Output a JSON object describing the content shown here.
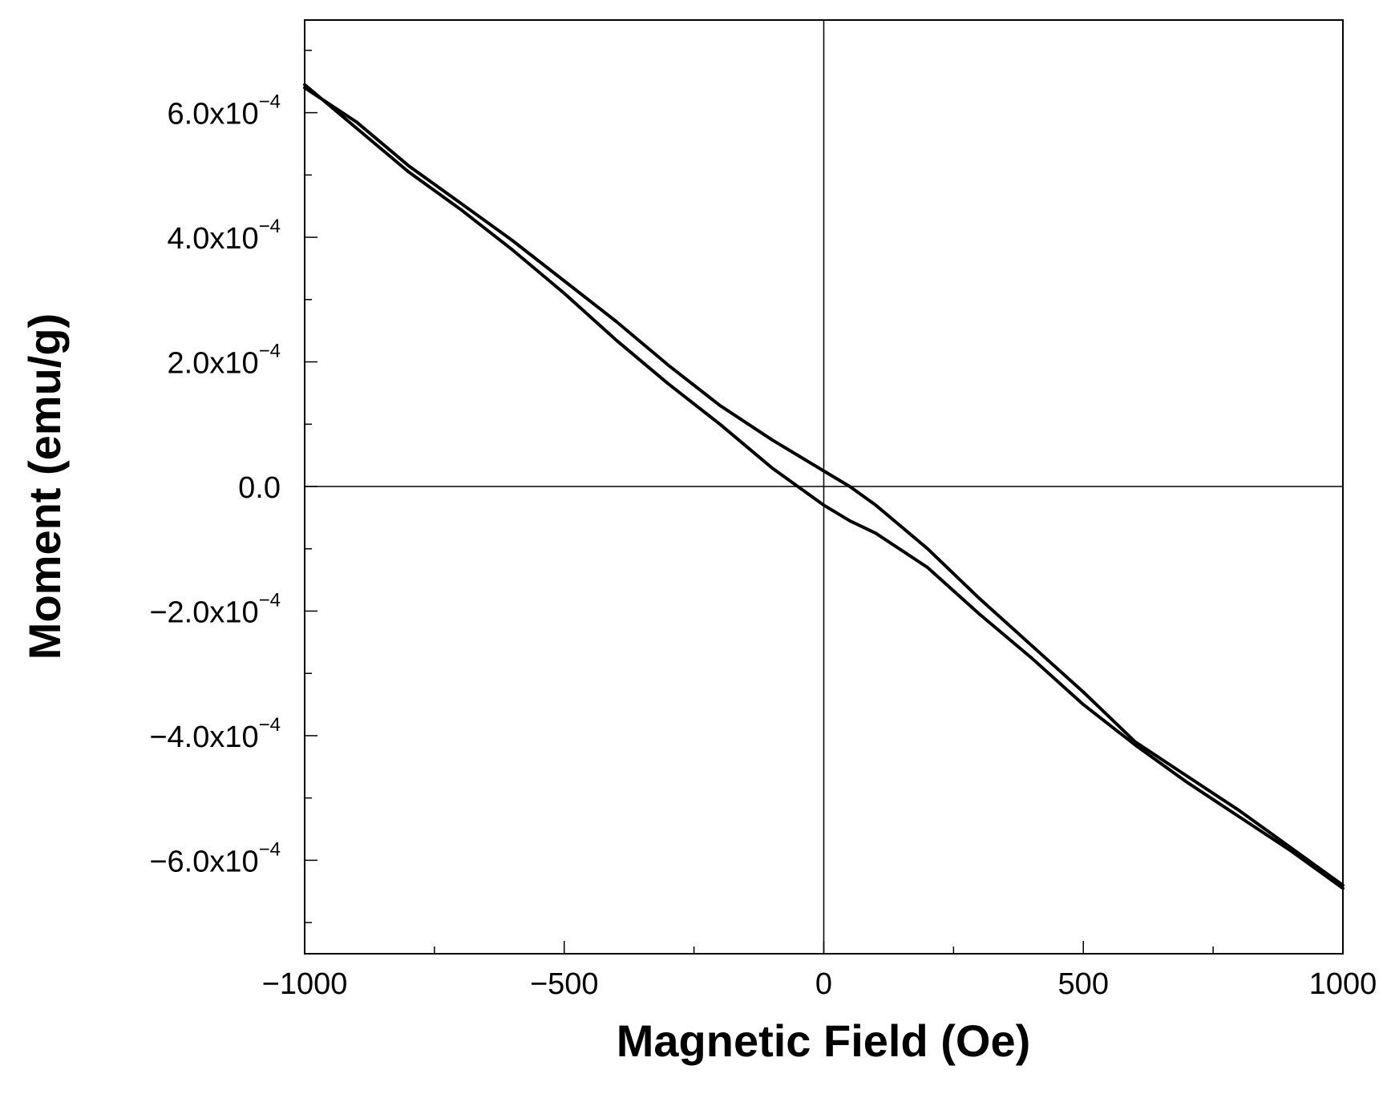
{
  "chart_data": {
    "type": "line",
    "title": "",
    "xlabel": "Magnetic Field (Oe)",
    "ylabel": "Moment (emu/g)",
    "xlim": [
      -1000,
      1000
    ],
    "ylim": [
      -0.00075,
      0.00075
    ],
    "x_ticks": [
      -1000,
      -500,
      0,
      500,
      1000
    ],
    "x_tick_labels": [
      "−1000",
      "−500",
      "0",
      "500",
      "1000"
    ],
    "y_ticks": [
      0.0006,
      0.0004,
      0.0002,
      0,
      -0.0002,
      -0.0004,
      -0.0006
    ],
    "y_tick_labels": [
      {
        "mant": "6.0x10",
        "exp": "−4"
      },
      {
        "mant": "4.0x10",
        "exp": "−4"
      },
      {
        "mant": "2.0x10",
        "exp": "−4"
      },
      {
        "mant": "0.0",
        "exp": ""
      },
      {
        "mant": "−2.0x10",
        "exp": "−4"
      },
      {
        "mant": "−4.0x10",
        "exp": "−4"
      },
      {
        "mant": "−6.0x10",
        "exp": "−4"
      }
    ],
    "zero_lines": true,
    "grid": false,
    "legend": "none",
    "line_color": "#000000",
    "series": [
      {
        "x": [
          -1000,
          -900,
          -800,
          -700,
          -600,
          -500,
          -400,
          -300,
          -200,
          -100,
          -50,
          0,
          50,
          100,
          200,
          300,
          400,
          500,
          600,
          700,
          800,
          900,
          1000
        ],
        "y": [
          0.00064,
          0.000585,
          0.000515,
          0.000455,
          0.000395,
          0.00033,
          0.000265,
          0.000195,
          0.00013,
          7.5e-05,
          5e-05,
          2.5e-05,
          0.0,
          -3e-05,
          -0.0001,
          -0.00018,
          -0.000255,
          -0.00033,
          -0.00041,
          -0.000465,
          -0.00052,
          -0.00058,
          -0.00064
        ]
      },
      {
        "x": [
          -1000,
          -900,
          -800,
          -700,
          -600,
          -500,
          -400,
          -300,
          -200,
          -100,
          -50,
          0,
          50,
          100,
          200,
          300,
          400,
          500,
          600,
          700,
          800,
          900,
          1000
        ],
        "y": [
          0.000645,
          0.000575,
          0.000505,
          0.000445,
          0.00038,
          0.00031,
          0.000235,
          0.000165,
          0.0001,
          3e-05,
          0.0,
          -3e-05,
          -5.5e-05,
          -7.5e-05,
          -0.00013,
          -0.000205,
          -0.000275,
          -0.00035,
          -0.000415,
          -0.000475,
          -0.00053,
          -0.000585,
          -0.000645
        ]
      }
    ]
  }
}
